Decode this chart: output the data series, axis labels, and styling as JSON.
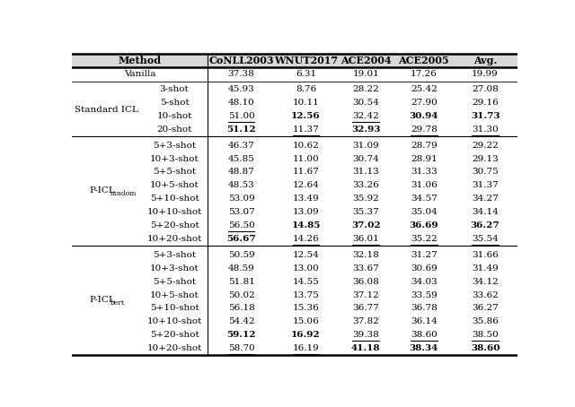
{
  "col_headers": [
    "Method",
    "",
    "CoNLL2003",
    "WNUT2017",
    "ACE2004",
    "ACE2005",
    "Avg."
  ],
  "sections": [
    {
      "group": "Vanilla",
      "rows": [
        {
          "sub": "",
          "vals": [
            "37.38",
            "6.31",
            "19.01",
            "17.26",
            "19.99"
          ],
          "bold": [
            false,
            false,
            false,
            false,
            false
          ],
          "underline": [
            false,
            false,
            false,
            false,
            false
          ]
        }
      ]
    },
    {
      "group": "Standard ICL",
      "rows": [
        {
          "sub": "3-shot",
          "vals": [
            "45.93",
            "8.76",
            "28.22",
            "25.42",
            "27.08"
          ],
          "bold": [
            false,
            false,
            false,
            false,
            false
          ],
          "underline": [
            false,
            false,
            false,
            false,
            false
          ]
        },
        {
          "sub": "5-shot",
          "vals": [
            "48.10",
            "10.11",
            "30.54",
            "27.90",
            "29.16"
          ],
          "bold": [
            false,
            false,
            false,
            false,
            false
          ],
          "underline": [
            false,
            false,
            false,
            false,
            false
          ]
        },
        {
          "sub": "10-shot",
          "vals": [
            "51.00",
            "12.56",
            "32.42",
            "30.94",
            "31.73"
          ],
          "bold": [
            false,
            true,
            false,
            true,
            true
          ],
          "underline": [
            true,
            false,
            true,
            false,
            false
          ]
        },
        {
          "sub": "20-shot",
          "vals": [
            "51.12",
            "11.37",
            "32.93",
            "29.78",
            "31.30"
          ],
          "bold": [
            true,
            false,
            true,
            false,
            false
          ],
          "underline": [
            false,
            true,
            false,
            true,
            true
          ]
        }
      ]
    },
    {
      "group": "P-ICL_random",
      "rows": [
        {
          "sub": "5+3-shot",
          "vals": [
            "46.37",
            "10.62",
            "31.09",
            "28.79",
            "29.22"
          ],
          "bold": [
            false,
            false,
            false,
            false,
            false
          ],
          "underline": [
            false,
            false,
            false,
            false,
            false
          ]
        },
        {
          "sub": "10+3-shot",
          "vals": [
            "45.85",
            "11.00",
            "30.74",
            "28.91",
            "29.13"
          ],
          "bold": [
            false,
            false,
            false,
            false,
            false
          ],
          "underline": [
            false,
            false,
            false,
            false,
            false
          ]
        },
        {
          "sub": "5+5-shot",
          "vals": [
            "48.87",
            "11.67",
            "31.13",
            "31.33",
            "30.75"
          ],
          "bold": [
            false,
            false,
            false,
            false,
            false
          ],
          "underline": [
            false,
            false,
            false,
            false,
            false
          ]
        },
        {
          "sub": "10+5-shot",
          "vals": [
            "48.53",
            "12.64",
            "33.26",
            "31.06",
            "31.37"
          ],
          "bold": [
            false,
            false,
            false,
            false,
            false
          ],
          "underline": [
            false,
            false,
            false,
            false,
            false
          ]
        },
        {
          "sub": "5+10-shot",
          "vals": [
            "53.09",
            "13.49",
            "35.92",
            "34.57",
            "34.27"
          ],
          "bold": [
            false,
            false,
            false,
            false,
            false
          ],
          "underline": [
            false,
            false,
            false,
            false,
            false
          ]
        },
        {
          "sub": "10+10-shot",
          "vals": [
            "53.07",
            "13.09",
            "35.37",
            "35.04",
            "34.14"
          ],
          "bold": [
            false,
            false,
            false,
            false,
            false
          ],
          "underline": [
            false,
            false,
            false,
            false,
            false
          ]
        },
        {
          "sub": "5+20-shot",
          "vals": [
            "56.50",
            "14.85",
            "37.02",
            "36.69",
            "36.27"
          ],
          "bold": [
            false,
            true,
            true,
            true,
            true
          ],
          "underline": [
            true,
            false,
            false,
            false,
            false
          ]
        },
        {
          "sub": "10+20-shot",
          "vals": [
            "56.67",
            "14.26",
            "36.01",
            "35.22",
            "35.54"
          ],
          "bold": [
            true,
            false,
            false,
            false,
            false
          ],
          "underline": [
            false,
            true,
            true,
            true,
            true
          ]
        }
      ]
    },
    {
      "group": "P-ICL_bert",
      "rows": [
        {
          "sub": "5+3-shot",
          "vals": [
            "50.59",
            "12.54",
            "32.18",
            "31.27",
            "31.66"
          ],
          "bold": [
            false,
            false,
            false,
            false,
            false
          ],
          "underline": [
            false,
            false,
            false,
            false,
            false
          ]
        },
        {
          "sub": "10+3-shot",
          "vals": [
            "48.59",
            "13.00",
            "33.67",
            "30.69",
            "31.49"
          ],
          "bold": [
            false,
            false,
            false,
            false,
            false
          ],
          "underline": [
            false,
            false,
            false,
            false,
            false
          ]
        },
        {
          "sub": "5+5-shot",
          "vals": [
            "51.81",
            "14.55",
            "36.08",
            "34.03",
            "34.12"
          ],
          "bold": [
            false,
            false,
            false,
            false,
            false
          ],
          "underline": [
            false,
            false,
            false,
            false,
            false
          ]
        },
        {
          "sub": "10+5-shot",
          "vals": [
            "50.02",
            "13.75",
            "37.12",
            "33.59",
            "33.62"
          ],
          "bold": [
            false,
            false,
            false,
            false,
            false
          ],
          "underline": [
            false,
            false,
            false,
            false,
            false
          ]
        },
        {
          "sub": "5+10-shot",
          "vals": [
            "56.18",
            "15.36",
            "36.77",
            "36.78",
            "36.27"
          ],
          "bold": [
            false,
            false,
            false,
            false,
            false
          ],
          "underline": [
            false,
            false,
            false,
            false,
            false
          ]
        },
        {
          "sub": "10+10-shot",
          "vals": [
            "54.42",
            "15.06",
            "37.82",
            "36.14",
            "35.86"
          ],
          "bold": [
            false,
            false,
            false,
            false,
            false
          ],
          "underline": [
            false,
            false,
            false,
            false,
            false
          ]
        },
        {
          "sub": "5+20-shot",
          "vals": [
            "59.12",
            "16.92",
            "39.38",
            "38.60",
            "38.50"
          ],
          "bold": [
            true,
            true,
            false,
            false,
            false
          ],
          "underline": [
            false,
            false,
            true,
            true,
            true
          ]
        },
        {
          "sub": "10+20-shot",
          "vals": [
            "58.70",
            "16.19",
            "41.18",
            "38.34",
            "38.60"
          ],
          "bold": [
            false,
            false,
            true,
            true,
            true
          ],
          "underline": [
            true,
            true,
            false,
            false,
            false
          ]
        }
      ]
    }
  ],
  "figsize": [
    6.4,
    4.54
  ],
  "dpi": 100,
  "font_size": 7.5,
  "header_font_size": 8.0,
  "bg_color": "#ffffff"
}
